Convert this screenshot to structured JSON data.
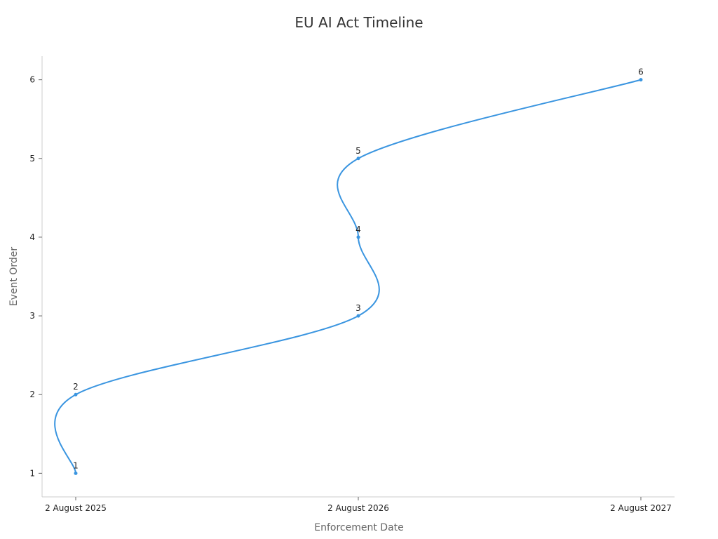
{
  "chart_data": {
    "type": "line",
    "title": "EU AI Act Timeline",
    "xlabel": "Enforcement Date",
    "ylabel": "Event Order",
    "x_categories": [
      "2 August 2025",
      "2 August 2026",
      "2 August 2027"
    ],
    "y_ticks": [
      1,
      2,
      3,
      4,
      5,
      6
    ],
    "ylim": [
      0.7,
      6.3
    ],
    "grid": false,
    "smooth": true,
    "color": "#3a95e0",
    "points": [
      {
        "x": "2 August 2025",
        "y": 1,
        "label": "1"
      },
      {
        "x": "2 August 2025",
        "y": 2,
        "label": "2"
      },
      {
        "x": "2 August 2026",
        "y": 3,
        "label": "3"
      },
      {
        "x": "2 August 2026",
        "y": 4,
        "label": "4"
      },
      {
        "x": "2 August 2026",
        "y": 5,
        "label": "5"
      },
      {
        "x": "2 August 2027",
        "y": 6,
        "label": "6"
      }
    ]
  }
}
